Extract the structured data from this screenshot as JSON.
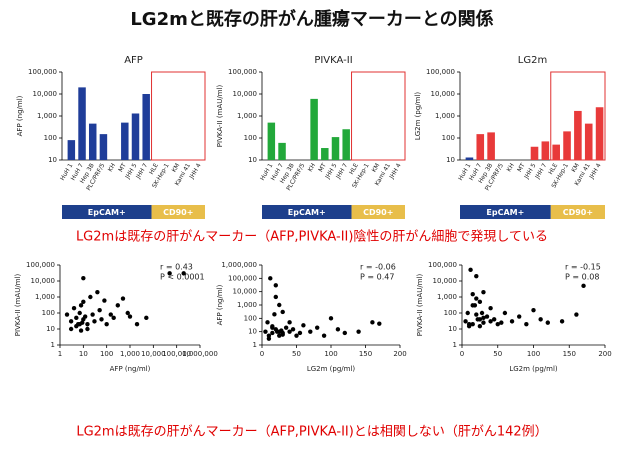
{
  "title": "LG2mと既存の肝がん腫瘍マーカーとの関係",
  "captions": [
    "LG2mは既存の肝がんマーカー（AFP,PIVKA-II)陰性の肝がん細胞で発現している",
    "LG2mは既存の肝がんマーカー（AFP,PIVKA-II)とは相関しない（肝がん142例）"
  ],
  "chart_data": [
    {
      "type": "bar",
      "title": "AFP",
      "y_label": "AFP (ng/ml)",
      "log_y": true,
      "color": "#1f3d99",
      "categories": [
        "HuH 1",
        "HuH 7",
        "Hep 3B",
        "PLC/PRF/5",
        "KH",
        "MT",
        "JHH 5",
        "JHH 7",
        "HLE",
        "SK-Hep-1",
        "KM",
        "Kami 41",
        "JHH 4"
      ],
      "values": [
        80,
        20000,
        450,
        150,
        null,
        500,
        1300,
        10000,
        null,
        null,
        null,
        null,
        null
      ],
      "group_labels": [
        "EpCAM+",
        "CD90+"
      ],
      "ylim": [
        10,
        100000
      ],
      "yticks": [
        10,
        100,
        {
          "value": 1000,
          "label": "1,000"
        },
        {
          "value": 10000,
          "label": "10,000"
        },
        {
          "value": 100000,
          "label": "100,000"
        }
      ]
    },
    {
      "type": "bar",
      "title": "PIVKA-II",
      "y_label": "PIVKA-II (mAU/ml)",
      "log_y": true,
      "color": "#22a83a",
      "categories": [
        "HuH 1",
        "HuH 7",
        "Hep 3B",
        "PLC/PRF/5",
        "KH",
        "MT",
        "JHH 5",
        "JHH 7",
        "HLE",
        "SK-Hep-1",
        "KM",
        "Kami 41",
        "JHH 4"
      ],
      "values": [
        500,
        60,
        null,
        null,
        6000,
        35,
        110,
        250,
        null,
        null,
        null,
        null,
        null
      ],
      "group_labels": [
        "EpCAM+",
        "CD90+"
      ],
      "ylim": [
        10,
        100000
      ],
      "yticks": [
        10,
        100,
        {
          "value": 1000,
          "label": "1,000"
        },
        {
          "value": 10000,
          "label": "10,000"
        },
        {
          "value": 100000,
          "label": "100,000"
        }
      ]
    },
    {
      "type": "bar",
      "title": "LG2m",
      "y_label": "LG2m (pg/ml)",
      "log_y": true,
      "color": "#e83a3a",
      "colors": [
        "#1f3d99",
        "#e83a3a",
        "#e83a3a",
        "#e83a3a",
        "#e83a3a",
        "#e83a3a",
        "#e83a3a",
        "#e83a3a",
        "#e83a3a",
        "#e83a3a",
        "#e83a3a",
        "#e83a3a",
        "#e83a3a"
      ],
      "categories": [
        "HuH 1",
        "HuH 7",
        "Hep 3B",
        "PLC/PRF/5",
        "KH",
        "MT",
        "JHH 5",
        "JHH 7",
        "HLE",
        "SK-Hep-1",
        "KM",
        "Kami 41",
        "JHH 4"
      ],
      "values": [
        13,
        150,
        180,
        null,
        null,
        null,
        40,
        70,
        50,
        200,
        1700,
        450,
        2500
      ],
      "group_labels": [
        "EpCAM+",
        "CD90+"
      ],
      "ylim": [
        10,
        100000
      ],
      "yticks": [
        10,
        100,
        {
          "value": 1000,
          "label": "1,000"
        },
        {
          "value": 10000,
          "label": "10,000"
        },
        {
          "value": 100000,
          "label": "100,000"
        }
      ]
    },
    {
      "type": "scatter",
      "x_label": "AFP (ng/ml)",
      "y_label": "PIVKA-II (mAU/ml)",
      "log_x": true,
      "log_y": true,
      "color": "#000000",
      "annotations": [
        "r = 0.43",
        "P < 0.0001"
      ],
      "x": [
        2,
        3,
        3,
        4,
        5,
        5,
        6,
        7,
        8,
        8,
        9,
        10,
        10,
        12,
        15,
        20,
        25,
        30,
        40,
        50,
        60,
        80,
        100,
        150,
        200,
        300,
        500,
        800,
        1000,
        2000,
        5000,
        50000,
        200000,
        10,
        15,
        7
      ],
      "values": [
        80,
        30,
        10,
        200,
        15,
        50,
        20,
        100,
        8,
        300,
        25,
        40,
        15000,
        60,
        20,
        1000,
        80,
        30,
        2000,
        150,
        40,
        600,
        20,
        80,
        50,
        300,
        800,
        100,
        60,
        20,
        50,
        30000,
        30000,
        500,
        10,
        20
      ],
      "xlim": [
        1,
        1000000
      ],
      "xticks": [
        1,
        10,
        100,
        {
          "value": 1000,
          "label": "1,000"
        },
        {
          "value": 10000,
          "label": "10,000"
        },
        {
          "value": 100000,
          "label": "100,000"
        },
        {
          "value": 1000000,
          "label": "1,000,000"
        }
      ],
      "ylim": [
        1,
        100000
      ],
      "yticks": [
        1,
        10,
        100,
        {
          "value": 1000,
          "label": "1,000"
        },
        {
          "value": 10000,
          "label": "10,000"
        },
        {
          "value": 100000,
          "label": "100,000"
        }
      ]
    },
    {
      "type": "scatter",
      "x_label": "LG2m (pg/ml)",
      "y_label": "AFP (ng/ml)",
      "log_x": false,
      "log_y": true,
      "color": "#000000",
      "annotations": [
        "r = -0.06",
        "P = 0.47"
      ],
      "x": [
        5,
        8,
        10,
        12,
        15,
        15,
        18,
        20,
        20,
        22,
        25,
        25,
        28,
        30,
        30,
        35,
        40,
        40,
        45,
        50,
        55,
        60,
        70,
        80,
        90,
        100,
        110,
        120,
        140,
        160,
        170,
        10,
        20,
        30,
        15,
        25
      ],
      "values": [
        10,
        50,
        5,
        100000,
        20,
        8,
        200,
        15,
        30000,
        10,
        5,
        1000,
        12,
        8,
        300,
        20,
        10,
        50,
        15,
        5,
        8,
        30,
        10,
        20,
        5,
        100,
        15,
        8,
        10,
        50,
        40,
        3,
        4000,
        6,
        25,
        10
      ],
      "xlim": [
        0,
        200
      ],
      "xticks": [
        0,
        50,
        100,
        150,
        200
      ],
      "ylim": [
        1,
        1000000
      ],
      "yticks": [
        1,
        10,
        100,
        {
          "value": 1000,
          "label": "1,000"
        },
        {
          "value": 10000,
          "label": "10,000"
        },
        {
          "value": 100000,
          "label": "100,000"
        },
        {
          "value": 1000000,
          "label": "1,000,000"
        }
      ]
    },
    {
      "type": "scatter",
      "x_label": "LG2m (pg/ml)",
      "y_label": "PIVKA-II (mAU/ml)",
      "log_x": false,
      "log_y": true,
      "color": "#000000",
      "annotations": [
        "r = -0.15",
        "P = 0.08"
      ],
      "x": [
        5,
        8,
        10,
        12,
        15,
        15,
        18,
        20,
        20,
        22,
        25,
        25,
        28,
        30,
        30,
        35,
        40,
        40,
        45,
        50,
        55,
        60,
        70,
        80,
        90,
        100,
        110,
        120,
        140,
        160,
        170,
        10,
        20,
        30,
        15,
        25
      ],
      "values": [
        30,
        100,
        20,
        50000,
        1500,
        20,
        300,
        80,
        20000,
        40,
        15,
        500,
        100,
        25,
        2000,
        60,
        30,
        200,
        40,
        20,
        25,
        100,
        30,
        60,
        20,
        150,
        40,
        25,
        30,
        80,
        5000,
        15,
        800,
        50,
        300,
        40
      ],
      "xlim": [
        0,
        200
      ],
      "xticks": [
        0,
        50,
        100,
        150,
        200
      ],
      "ylim": [
        1,
        100000
      ],
      "yticks": [
        1,
        10,
        100,
        {
          "value": 1000,
          "label": "1,000"
        },
        {
          "value": 10000,
          "label": "10,000"
        },
        {
          "value": 100000,
          "label": "100,000"
        }
      ]
    }
  ]
}
